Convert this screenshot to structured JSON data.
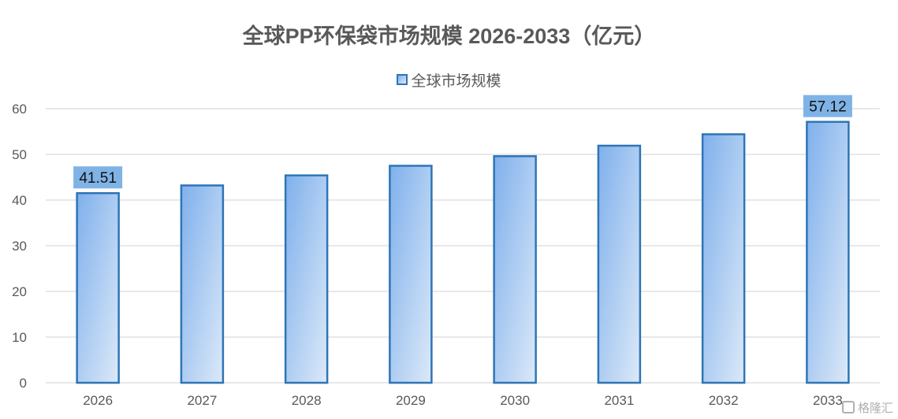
{
  "chart_data": {
    "type": "bar",
    "title": "全球PP环保袋市场规模 2026-2033（亿元）",
    "categories": [
      "2026",
      "2027",
      "2028",
      "2029",
      "2030",
      "2031",
      "2032",
      "2033"
    ],
    "series": [
      {
        "name": "全球市场规模",
        "values": [
          41.51,
          43.2,
          45.4,
          47.5,
          49.6,
          51.9,
          54.4,
          57.12
        ]
      }
    ],
    "data_labels": [
      {
        "category": "2026",
        "text": "41.51"
      },
      {
        "category": "2033",
        "text": "57.12"
      }
    ],
    "ylim": [
      0,
      60
    ],
    "yticks": [
      0,
      10,
      20,
      30,
      40,
      50,
      60
    ],
    "grid": true,
    "legend_position": "top",
    "colors": {
      "bar_fill_start": "#7fb0ec",
      "bar_fill_end": "#dce9f8",
      "bar_border": "#2e75b6",
      "data_label_bg": "#7fb3e6",
      "gridline": "#d9d9d9",
      "text": "#595959"
    }
  },
  "watermark": {
    "text": "格隆汇"
  }
}
